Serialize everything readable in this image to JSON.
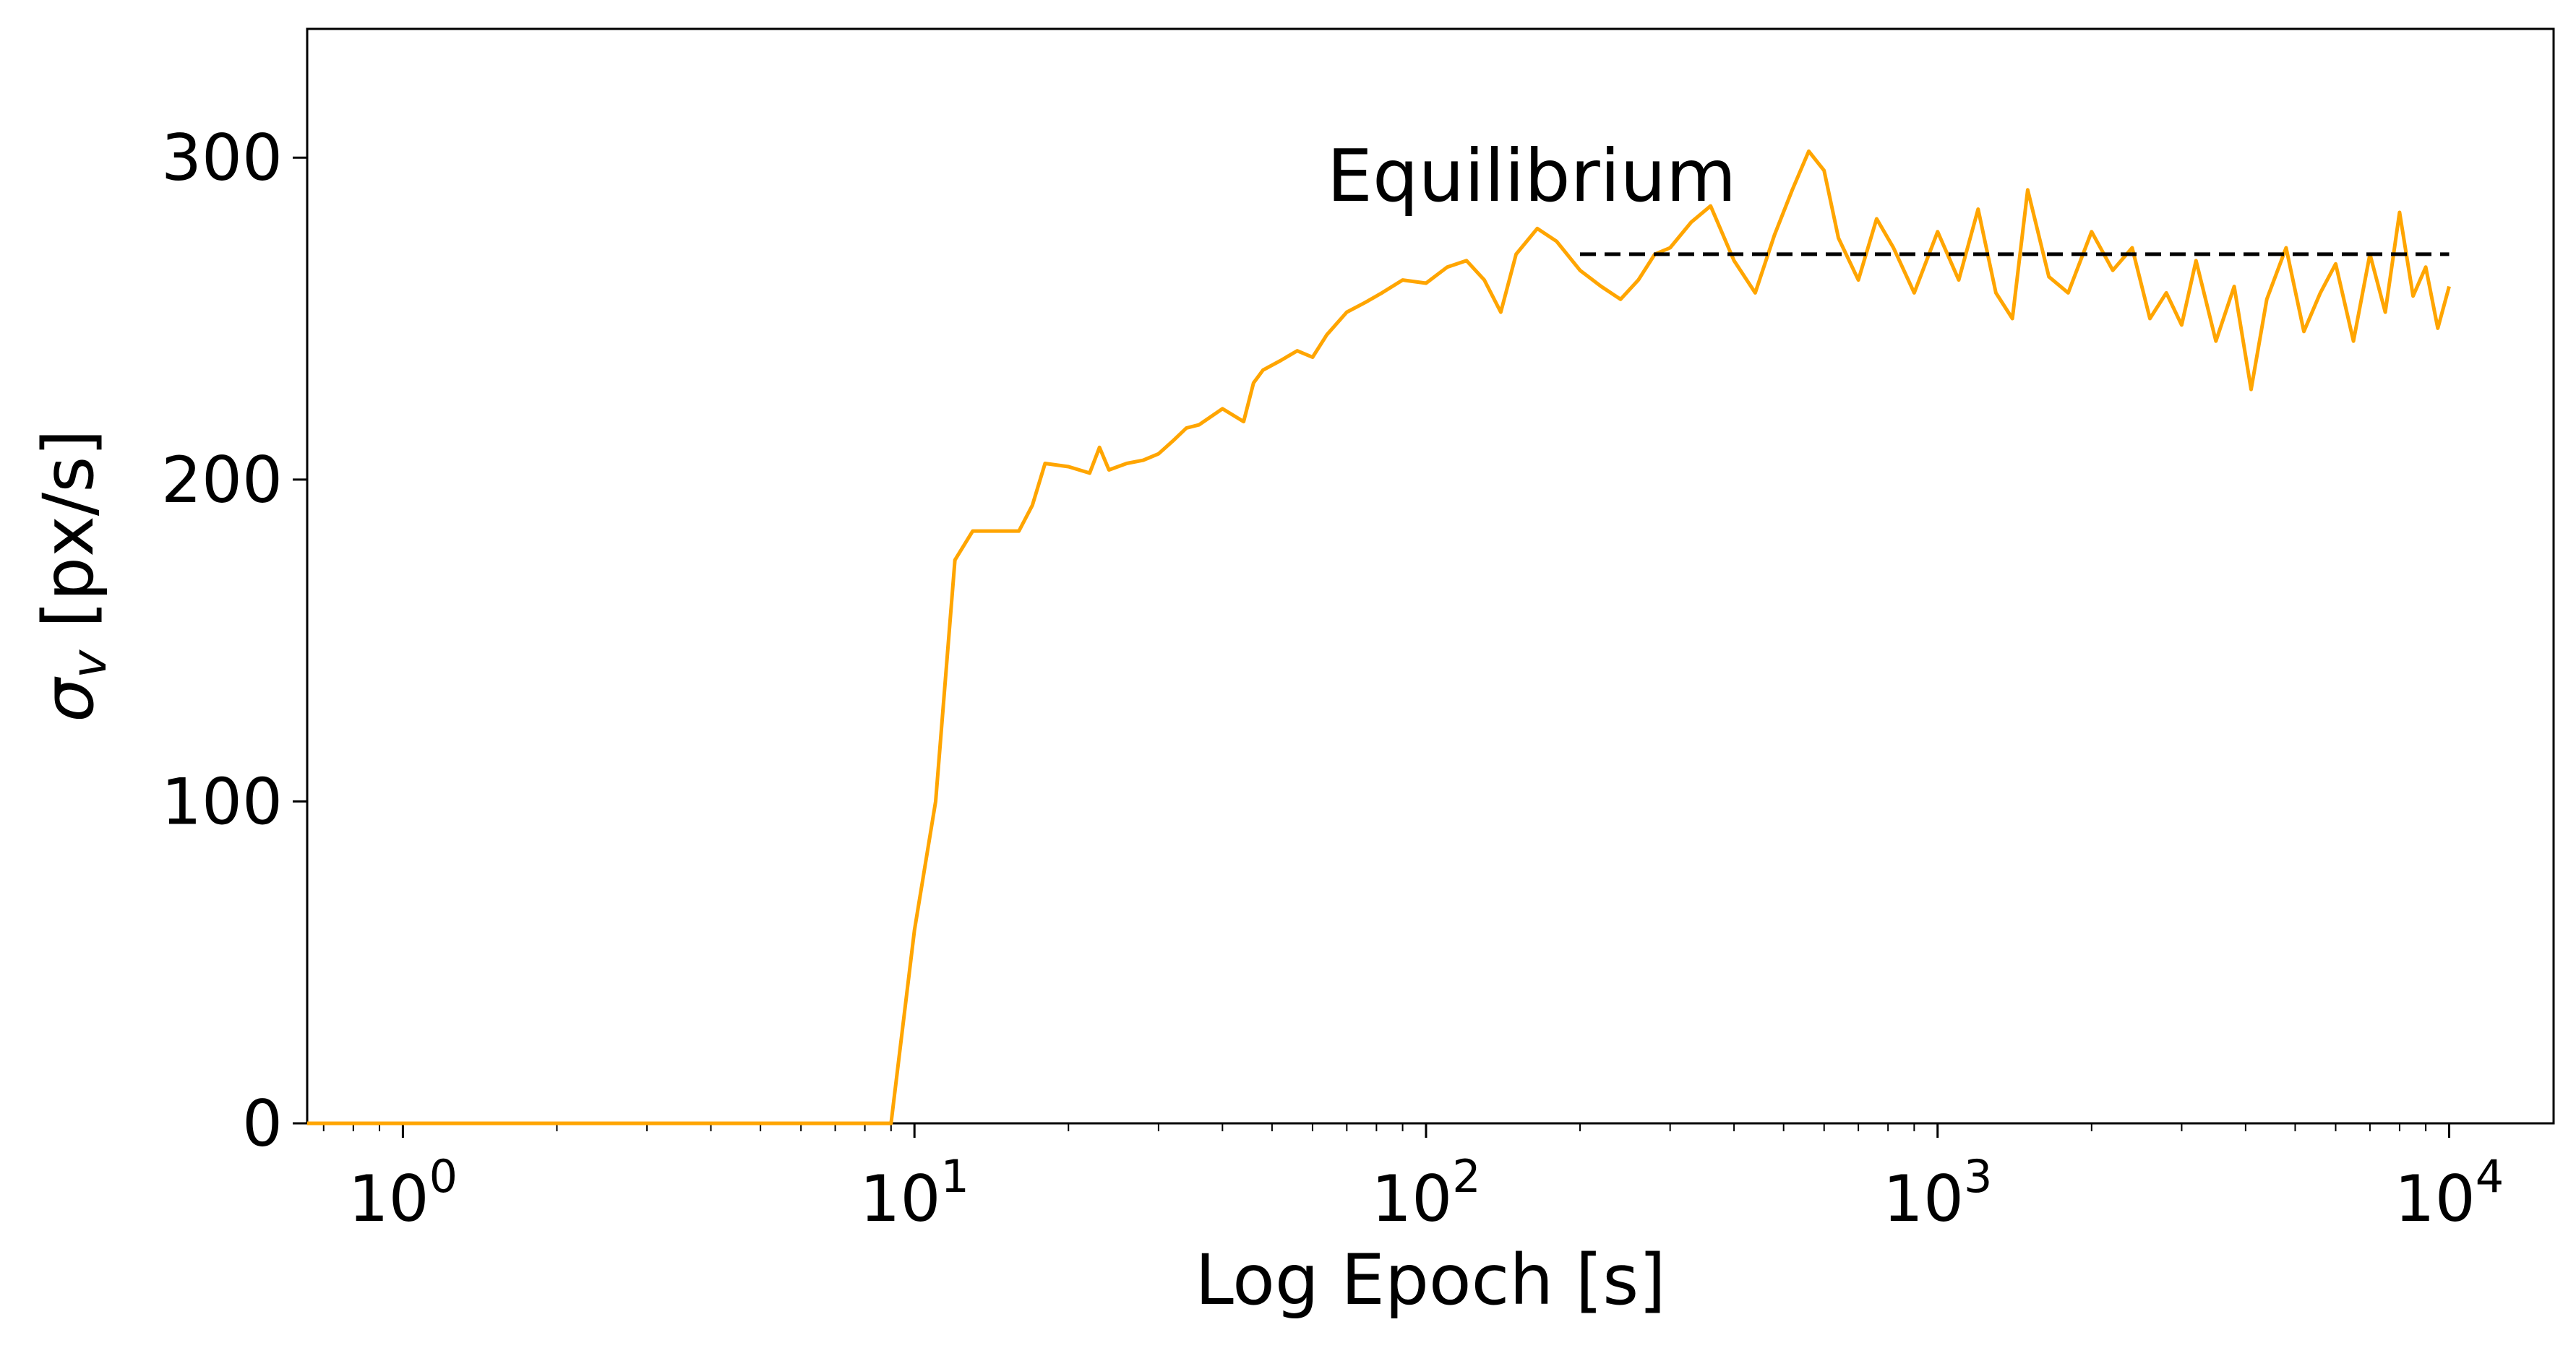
{
  "chart_data": {
    "type": "line",
    "xlabel": "Log Epoch [s]",
    "ylabel_base": "σ",
    "ylabel_sub": "v",
    "ylabel_unit": " [px/s]",
    "xscale": "log",
    "xlim": [
      0.65,
      16000
    ],
    "ylim": [
      0,
      340
    ],
    "x_ticks": [
      {
        "base": "10",
        "exp": "0",
        "value": 1
      },
      {
        "base": "10",
        "exp": "1",
        "value": 10
      },
      {
        "base": "10",
        "exp": "2",
        "value": 100
      },
      {
        "base": "10",
        "exp": "3",
        "value": 1000
      },
      {
        "base": "10",
        "exp": "4",
        "value": 10000
      }
    ],
    "y_ticks": [
      {
        "label": "0",
        "value": 0
      },
      {
        "label": "100",
        "value": 100
      },
      {
        "label": "200",
        "value": 200
      },
      {
        "label": "300",
        "value": 300
      }
    ],
    "grid": false,
    "legend": "none",
    "series": [
      {
        "color": "#FFA500",
        "x": [
          0.65,
          1,
          2,
          4,
          6,
          8,
          9,
          10,
          11,
          12,
          13,
          14,
          15,
          16,
          17,
          18,
          20,
          22,
          23,
          24,
          26,
          28,
          30,
          32,
          34,
          36,
          40,
          44,
          46,
          48,
          52,
          56,
          60,
          64,
          70,
          76,
          82,
          90,
          100,
          110,
          120,
          130,
          140,
          150,
          165,
          180,
          200,
          220,
          240,
          260,
          280,
          300,
          330,
          360,
          400,
          440,
          480,
          520,
          560,
          600,
          640,
          700,
          760,
          820,
          900,
          1000,
          1100,
          1200,
          1300,
          1400,
          1500,
          1650,
          1800,
          2000,
          2200,
          2400,
          2600,
          2800,
          3000,
          3200,
          3500,
          3800,
          4100,
          4400,
          4800,
          5200,
          5600,
          6000,
          6500,
          7000,
          7500,
          8000,
          8500,
          9000,
          9500,
          10000
        ],
        "y": [
          0,
          0,
          0,
          0,
          0,
          0,
          0,
          60,
          100,
          175,
          184,
          184,
          184,
          184,
          192,
          205,
          204,
          202,
          210,
          203,
          205,
          206,
          208,
          212,
          216,
          217,
          222,
          218,
          230,
          234,
          237,
          240,
          238,
          245,
          252,
          255,
          258,
          262,
          261,
          266,
          268,
          262,
          252,
          270,
          278,
          274,
          265,
          260,
          256,
          262,
          270,
          272,
          280,
          285,
          268,
          258,
          276,
          290,
          302,
          296,
          275,
          262,
          281,
          272,
          258,
          277,
          262,
          284,
          258,
          250,
          290,
          263,
          258,
          277,
          265,
          272,
          250,
          258,
          248,
          268,
          243,
          260,
          228,
          256,
          272,
          246,
          258,
          267,
          243,
          270,
          252,
          283,
          257,
          266,
          247,
          260
        ]
      },
      {
        "style": "dashed",
        "color": "#000000",
        "x": [
          200,
          10000
        ],
        "y": [
          270,
          270
        ]
      }
    ],
    "annotations": [
      {
        "text": "Equilibrium",
        "x": 64,
        "y": 290
      }
    ]
  }
}
